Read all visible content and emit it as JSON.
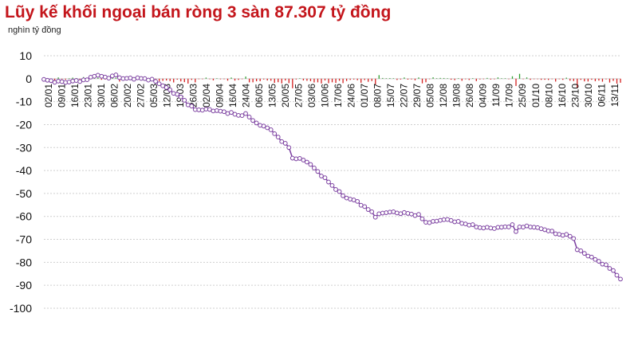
{
  "chart_data": {
    "type": "line",
    "title": "Lũy kế khối ngoại bán ròng 3 sàn 87.307 tỷ đồng",
    "unit_label": "nghìn tỷ đồng",
    "ylim": [
      -100,
      10
    ],
    "y_ticks": [
      10,
      0,
      -10,
      -20,
      -30,
      -40,
      -50,
      -60,
      -70,
      -80,
      -90,
      -100
    ],
    "grid": true,
    "x_tick_labels": [
      "02/01",
      "09/01",
      "16/01",
      "23/01",
      "30/01",
      "06/02",
      "20/02",
      "27/02",
      "05/03",
      "12/03",
      "19/03",
      "26/03",
      "02/04",
      "09/04",
      "16/04",
      "24/04",
      "06/05",
      "13/05",
      "20/05",
      "27/05",
      "03/06",
      "10/06",
      "17/06",
      "24/06",
      "01/07",
      "08/07",
      "15/07",
      "22/07",
      "29/07",
      "05/08",
      "12/08",
      "19/08",
      "26/08",
      "04/09",
      "11/09",
      "17/09",
      "25/09",
      "01/10",
      "08/10",
      "16/10",
      "23/10",
      "30/10",
      "06/11",
      "13/11"
    ],
    "line_color": "#7b3fa0",
    "cumulative_key_points": [
      [
        0,
        -0.5
      ],
      [
        3,
        -1.2
      ],
      [
        6,
        -1.5
      ],
      [
        9,
        -1
      ],
      [
        12,
        -0.5
      ],
      [
        14,
        1.5
      ],
      [
        16,
        1
      ],
      [
        18,
        0.5
      ],
      [
        20,
        1.5
      ],
      [
        22,
        0
      ],
      [
        25,
        0.2
      ],
      [
        28,
        0
      ],
      [
        30,
        -0.5
      ],
      [
        32,
        -2
      ],
      [
        34,
        -4
      ],
      [
        36,
        -6
      ],
      [
        38,
        -8
      ],
      [
        40,
        -11
      ],
      [
        42,
        -13.5
      ],
      [
        44,
        -13.5
      ],
      [
        46,
        -13.5
      ],
      [
        48,
        -14
      ],
      [
        50,
        -14.5
      ],
      [
        52,
        -15
      ],
      [
        54,
        -16
      ],
      [
        56,
        -15.5
      ],
      [
        58,
        -18
      ],
      [
        60,
        -20.5
      ],
      [
        62,
        -21
      ],
      [
        64,
        -24
      ],
      [
        66,
        -27
      ],
      [
        68,
        -30
      ],
      [
        69,
        -34.5
      ],
      [
        71,
        -35
      ],
      [
        73,
        -36
      ],
      [
        75,
        -39
      ],
      [
        77,
        -42
      ],
      [
        79,
        -45
      ],
      [
        81,
        -48
      ],
      [
        83,
        -51
      ],
      [
        85,
        -52.5
      ],
      [
        87,
        -53.5
      ],
      [
        89,
        -56
      ],
      [
        91,
        -58
      ],
      [
        92,
        -60
      ],
      [
        94,
        -58.5
      ],
      [
        96,
        -58
      ],
      [
        98,
        -58.5
      ],
      [
        100,
        -58.5
      ],
      [
        102,
        -59
      ],
      [
        104,
        -59.5
      ],
      [
        106,
        -62.5
      ],
      [
        108,
        -62.5
      ],
      [
        110,
        -61.5
      ],
      [
        112,
        -61.5
      ],
      [
        114,
        -62
      ],
      [
        116,
        -63
      ],
      [
        118,
        -63.5
      ],
      [
        120,
        -64.5
      ],
      [
        122,
        -65
      ],
      [
        124,
        -65
      ],
      [
        126,
        -65
      ],
      [
        128,
        -64.5
      ],
      [
        130,
        -64
      ],
      [
        131,
        -66.5
      ],
      [
        132,
        -64.5
      ],
      [
        134,
        -64.5
      ],
      [
        136,
        -64.5
      ],
      [
        138,
        -65.5
      ],
      [
        140,
        -66
      ],
      [
        142,
        -67.5
      ],
      [
        144,
        -68
      ],
      [
        146,
        -68.5
      ],
      [
        147,
        -69.5
      ],
      [
        148,
        -74.5
      ],
      [
        150,
        -76
      ],
      [
        152,
        -78
      ],
      [
        154,
        -79.5
      ],
      [
        156,
        -81.5
      ],
      [
        158,
        -83.5
      ],
      [
        159,
        -85.5
      ],
      [
        160,
        -87.3
      ]
    ],
    "daily_flow_note": "small red/green daily net-flow bars along the zero line"
  }
}
